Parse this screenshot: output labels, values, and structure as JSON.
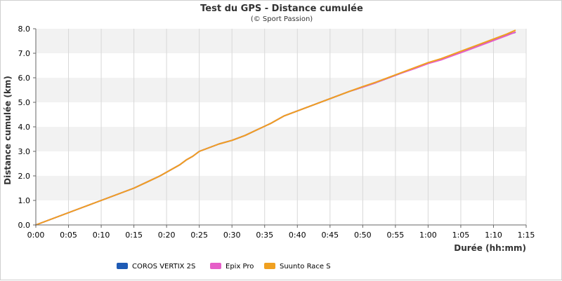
{
  "chart_data": {
    "type": "line",
    "title": "Test du GPS - Distance cumulée",
    "subtitle": "(© Sport Passion)",
    "xlabel": "Durée (hh:mm)",
    "ylabel": "Distance cumulée (km)",
    "xlim": [
      0,
      75
    ],
    "ylim": [
      0,
      8
    ],
    "x_ticks": [
      "0:00",
      "0:05",
      "0:10",
      "0:15",
      "0:20",
      "0:25",
      "0:30",
      "0:35",
      "0:40",
      "0:45",
      "0:50",
      "0:55",
      "1:00",
      "1:05",
      "1:10",
      "1:15"
    ],
    "y_ticks": [
      "0.0",
      "1.0",
      "2.0",
      "3.0",
      "4.0",
      "5.0",
      "6.0",
      "7.0",
      "8.0"
    ],
    "grid": true,
    "legend_position": "bottom",
    "series": [
      {
        "name": "COROS VERTIX 2S",
        "color": "#1f5bb5",
        "x": [
          0,
          1,
          3,
          5,
          7,
          9,
          11,
          13,
          15,
          17,
          19,
          20,
          21,
          22,
          23,
          24,
          25,
          26,
          28,
          30,
          32,
          34,
          36,
          37,
          38,
          40,
          42,
          44,
          46,
          48,
          50,
          52,
          54,
          56,
          58,
          60,
          62,
          64,
          66,
          68,
          70,
          72,
          73.3
        ],
        "y": [
          0,
          0.1,
          0.3,
          0.5,
          0.7,
          0.9,
          1.1,
          1.3,
          1.5,
          1.75,
          2.0,
          2.15,
          2.3,
          2.45,
          2.65,
          2.8,
          3.0,
          3.1,
          3.3,
          3.45,
          3.65,
          3.9,
          4.15,
          4.3,
          4.45,
          4.65,
          4.85,
          5.05,
          5.25,
          5.45,
          5.62,
          5.8,
          6.0,
          6.2,
          6.4,
          6.6,
          6.75,
          6.95,
          7.15,
          7.35,
          7.55,
          7.75,
          7.85
        ]
      },
      {
        "name": "Epix Pro",
        "color": "#e65ec8",
        "x": [
          0,
          1,
          3,
          5,
          7,
          9,
          11,
          13,
          15,
          17,
          19,
          20,
          21,
          22,
          23,
          24,
          25,
          26,
          28,
          30,
          32,
          34,
          36,
          37,
          38,
          40,
          42,
          44,
          46,
          48,
          50,
          52,
          54,
          56,
          58,
          60,
          62,
          64,
          66,
          68,
          70,
          72,
          73.3
        ],
        "y": [
          0,
          0.1,
          0.3,
          0.5,
          0.7,
          0.9,
          1.1,
          1.3,
          1.5,
          1.75,
          2.0,
          2.15,
          2.3,
          2.45,
          2.65,
          2.8,
          3.0,
          3.1,
          3.3,
          3.45,
          3.65,
          3.9,
          4.15,
          4.3,
          4.45,
          4.65,
          4.85,
          5.05,
          5.25,
          5.45,
          5.62,
          5.8,
          6.0,
          6.2,
          6.38,
          6.58,
          6.73,
          6.93,
          7.12,
          7.32,
          7.52,
          7.72,
          7.86
        ]
      },
      {
        "name": "Suunto Race S",
        "color": "#f0a020",
        "x": [
          0,
          1,
          3,
          5,
          7,
          9,
          11,
          13,
          15,
          17,
          19,
          20,
          21,
          22,
          23,
          24,
          25,
          26,
          28,
          30,
          32,
          34,
          36,
          37,
          38,
          40,
          42,
          44,
          46,
          48,
          50,
          52,
          54,
          56,
          58,
          60,
          62,
          64,
          66,
          68,
          70,
          72,
          73.3
        ],
        "y": [
          0,
          0.1,
          0.3,
          0.5,
          0.7,
          0.9,
          1.1,
          1.3,
          1.5,
          1.75,
          2.0,
          2.15,
          2.3,
          2.45,
          2.65,
          2.8,
          3.0,
          3.1,
          3.3,
          3.45,
          3.65,
          3.9,
          4.15,
          4.3,
          4.45,
          4.65,
          4.85,
          5.05,
          5.25,
          5.45,
          5.64,
          5.82,
          6.02,
          6.22,
          6.42,
          6.62,
          6.78,
          6.98,
          7.18,
          7.38,
          7.58,
          7.78,
          7.93
        ]
      }
    ]
  }
}
